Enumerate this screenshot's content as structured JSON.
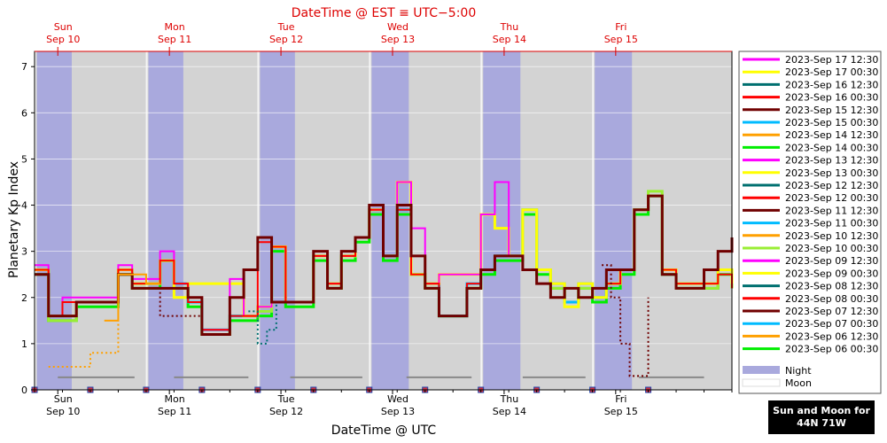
{
  "top_title": "DateTime @ EST ≡ UTC−5:00",
  "top_days": [
    {
      "day": "Sun",
      "date": "Sep 10"
    },
    {
      "day": "Mon",
      "date": "Sep 11"
    },
    {
      "day": "Tue",
      "date": "Sep 12"
    },
    {
      "day": "Wed",
      "date": "Sep 13"
    },
    {
      "day": "Thu",
      "date": "Sep 14"
    },
    {
      "day": "Fri",
      "date": "Sep 15"
    }
  ],
  "bottom_days": [
    {
      "day": "Sun",
      "date": "Sep 10"
    },
    {
      "day": "Mon",
      "date": "Sep 11"
    },
    {
      "day": "Tue",
      "date": "Sep 12"
    },
    {
      "day": "Wed",
      "date": "Sep 13"
    },
    {
      "day": "Thu",
      "date": "Sep 14"
    },
    {
      "day": "Fri",
      "date": "Sep 15"
    }
  ],
  "badge": {
    "line1": "Sun and Moon for",
    "line2": "44N 71W"
  },
  "colors": {
    "night": "#a9a9dd",
    "day": "#d3d3d3",
    "moon": "#888888",
    "top_title": "#dd0000"
  },
  "chart_data": {
    "type": "line",
    "xlabel": "DateTime @ UTC",
    "ylabel": "Planetary Kp Index",
    "xlim_hours": [
      0,
      150
    ],
    "x_unit": "hours from 2023-Sep 10 00:00 UTC",
    "ylim": [
      0,
      7.33
    ],
    "yticks": [
      0,
      1,
      2,
      3,
      4,
      5,
      6,
      7
    ],
    "legend_position": "right",
    "legend_extra": [
      "Night",
      "Moon"
    ],
    "night_intervals_hours": [
      [
        0.5,
        8
      ],
      [
        24.5,
        32
      ],
      [
        48.5,
        56
      ],
      [
        72.5,
        80.5
      ],
      [
        96.5,
        104.5
      ],
      [
        120.5,
        128.5
      ]
    ],
    "moon_intervals_hours": [
      [
        5,
        21.5
      ],
      [
        30,
        46
      ],
      [
        55,
        70.5
      ],
      [
        80,
        94
      ],
      [
        105,
        118.5
      ],
      [
        130,
        144
      ]
    ],
    "series": [
      {
        "name": "2023-Sep 17 12:30",
        "color": "#ff00ff"
      },
      {
        "name": "2023-Sep 17 00:30",
        "color": "#ffff00"
      },
      {
        "name": "2023-Sep 16 12:30",
        "color": "#007070"
      },
      {
        "name": "2023-Sep 16 00:30",
        "color": "#ff0000"
      },
      {
        "name": "2023-Sep 15 12:30",
        "color": "#700000"
      },
      {
        "name": "2023-Sep 15 00:30",
        "color": "#00bbff"
      },
      {
        "name": "2023-Sep 14 12:30",
        "color": "#ffa000"
      },
      {
        "name": "2023-Sep 14 00:30",
        "color": "#00ee00"
      },
      {
        "name": "2023-Sep 13 12:30",
        "color": "#ff00ff"
      },
      {
        "name": "2023-Sep 13 00:30",
        "color": "#ffff00"
      },
      {
        "name": "2023-Sep 12 12:30",
        "color": "#007070"
      },
      {
        "name": "2023-Sep 12 00:30",
        "color": "#ff0000"
      },
      {
        "name": "2023-Sep 11 12:30",
        "color": "#700000"
      },
      {
        "name": "2023-Sep 11 00:30",
        "color": "#00bbff"
      },
      {
        "name": "2023-Sep 10 12:30",
        "color": "#ffa000"
      },
      {
        "name": "2023-Sep 10 00:30",
        "color": "#99ee33"
      },
      {
        "name": "2023-Sep 09 12:30",
        "color": "#ff00ff"
      },
      {
        "name": "2023-Sep 09 00:30",
        "color": "#ffff00"
      },
      {
        "name": "2023-Sep 08 12:30",
        "color": "#007070"
      },
      {
        "name": "2023-Sep 08 00:30",
        "color": "#ff0000"
      },
      {
        "name": "2023-Sep 07 12:30",
        "color": "#700000"
      },
      {
        "name": "2023-Sep 07 00:30",
        "color": "#00bbff"
      },
      {
        "name": "2023-Sep 06 12:30",
        "color": "#ffa000"
      },
      {
        "name": "2023-Sep 06 00:30",
        "color": "#00ee00"
      }
    ],
    "plotted_traces": [
      {
        "color": "#00ee00",
        "width": 3,
        "x": [
          0,
          3,
          6,
          9,
          12,
          15,
          18,
          21,
          24,
          27,
          30,
          33,
          36,
          39,
          42,
          45,
          48,
          51,
          54,
          57,
          60,
          63,
          66,
          69,
          72,
          75,
          78,
          81,
          84,
          87,
          90,
          93,
          96,
          99,
          102,
          105,
          108,
          111,
          114,
          117,
          120,
          123,
          126,
          129,
          132,
          135,
          138,
          141,
          144,
          147,
          150
        ],
        "y": [
          2.5,
          1.5,
          1.5,
          1.8,
          1.8,
          1.8,
          2.5,
          2.2,
          2.2,
          2.8,
          2.2,
          1.8,
          1.2,
          1.2,
          1.5,
          1.5,
          1.6,
          3.0,
          1.8,
          1.8,
          2.8,
          2.2,
          2.8,
          3.2,
          3.8,
          2.8,
          3.8,
          2.5,
          2.2,
          1.6,
          1.6,
          2.2,
          2.5,
          2.8,
          2.8,
          3.8,
          2.5,
          2.2,
          1.9,
          2.2,
          1.9,
          2.2,
          2.5,
          3.8,
          4.2,
          2.5,
          2.2,
          2.2,
          2.2,
          2.5,
          2.2
        ]
      },
      {
        "color": "#99ee33",
        "width": 3,
        "x": [
          0,
          3,
          6,
          9,
          12,
          15,
          18,
          21,
          24,
          27,
          30,
          33,
          36,
          39,
          42,
          45,
          48,
          51,
          54,
          57,
          60,
          63,
          66,
          69,
          72,
          75,
          78,
          81,
          84,
          87,
          90,
          93,
          96,
          99,
          102,
          105,
          108,
          111,
          114,
          117,
          120,
          123,
          126,
          129,
          132,
          135,
          138,
          141,
          144,
          147,
          150
        ],
        "y": [
          2.6,
          1.5,
          1.5,
          1.9,
          1.9,
          1.9,
          2.6,
          2.3,
          2.3,
          2.8,
          2.2,
          1.9,
          1.2,
          1.2,
          1.6,
          1.6,
          1.7,
          3.1,
          1.9,
          1.9,
          2.9,
          2.2,
          2.9,
          3.3,
          3.9,
          2.9,
          3.9,
          2.5,
          2.2,
          1.6,
          1.6,
          2.2,
          2.6,
          2.9,
          2.9,
          3.9,
          2.6,
          2.2,
          1.9,
          2.2,
          2.0,
          2.3,
          2.6,
          3.9,
          4.3,
          2.6,
          2.2,
          2.2,
          2.2,
          2.6,
          2.2
        ]
      },
      {
        "color": "#00bbff",
        "width": 3,
        "x": [
          0,
          3,
          6,
          9,
          12,
          15,
          18,
          21,
          24,
          27,
          30,
          33,
          36,
          39,
          42,
          45,
          48,
          51,
          54,
          57,
          60,
          63,
          66,
          69,
          72,
          75,
          78,
          81,
          84,
          87,
          90,
          93,
          96,
          99,
          102,
          105,
          108,
          111,
          114,
          117,
          120,
          123,
          126,
          129,
          132,
          135,
          138,
          141,
          144,
          147,
          150
        ],
        "y": [
          2.6,
          1.6,
          1.6,
          1.9,
          1.9,
          1.9,
          2.6,
          2.3,
          2.3,
          2.8,
          2.3,
          1.9,
          1.3,
          1.3,
          1.6,
          1.6,
          1.8,
          3.1,
          1.9,
          1.9,
          2.9,
          2.3,
          2.9,
          3.3,
          3.9,
          2.9,
          3.9,
          2.5,
          2.3,
          1.6,
          1.6,
          2.3,
          2.6,
          2.9,
          2.9,
          3.9,
          2.6,
          2.3,
          1.9,
          2.3,
          2.0,
          2.3,
          2.6,
          3.9,
          4.2,
          2.6,
          2.3,
          2.3,
          2.3,
          2.6,
          2.3
        ]
      },
      {
        "color": "#ffff00",
        "width": 3,
        "x": [
          0,
          3,
          6,
          9,
          12,
          15,
          18,
          21,
          24,
          27,
          30,
          33,
          36,
          39,
          42,
          45,
          48,
          51,
          54,
          57,
          60,
          63,
          66,
          69,
          72,
          75,
          78,
          81,
          84,
          87,
          90,
          93,
          96,
          99,
          102,
          105,
          108,
          111,
          114,
          117,
          120,
          123,
          126,
          129,
          132,
          135,
          138,
          141,
          144,
          147,
          150
        ],
        "y": [
          2.6,
          1.6,
          1.6,
          1.9,
          1.9,
          1.9,
          2.6,
          2.3,
          2.3,
          2.8,
          2.0,
          2.3,
          2.3,
          2.3,
          2.3,
          1.6,
          1.8,
          3.1,
          1.9,
          1.9,
          2.9,
          2.3,
          2.9,
          3.3,
          3.9,
          2.9,
          4.5,
          2.5,
          2.3,
          2.5,
          2.5,
          2.5,
          3.8,
          3.5,
          2.9,
          3.9,
          2.6,
          2.3,
          1.8,
          2.3,
          2.0,
          2.3,
          2.6,
          3.9,
          4.2,
          2.6,
          2.3,
          2.3,
          2.3,
          2.6,
          2.3
        ]
      },
      {
        "color": "#ff00ff",
        "width": 2,
        "x": [
          0,
          3,
          6,
          9,
          12,
          15,
          18,
          21,
          24,
          27,
          30,
          33,
          36,
          39,
          42,
          45,
          48,
          51,
          54,
          57,
          60,
          63,
          66,
          69,
          72,
          75,
          78,
          81,
          84,
          87,
          90,
          93,
          96,
          99,
          102
        ],
        "y": [
          2.7,
          1.6,
          2.0,
          2.0,
          2.0,
          2.0,
          2.7,
          2.4,
          2.4,
          3.0,
          2.3,
          2.0,
          1.3,
          1.3,
          2.4,
          1.6,
          1.8,
          3.1,
          1.9,
          1.9,
          2.9,
          2.3,
          2.9,
          3.3,
          3.9,
          2.9,
          4.5,
          3.5,
          2.3,
          2.5,
          2.5,
          2.5,
          3.8,
          4.5,
          2.9
        ]
      },
      {
        "color": "#ff0000",
        "width": 2,
        "x": [
          0,
          3,
          6,
          9,
          12,
          15,
          18,
          21,
          24,
          27,
          30,
          33,
          36,
          39,
          42,
          45,
          48,
          51,
          54,
          57,
          60,
          63,
          66,
          69,
          72,
          75,
          78,
          81,
          84,
          87,
          90,
          93,
          96,
          99,
          102,
          105,
          108,
          111,
          114,
          117,
          120,
          123,
          126,
          129,
          132,
          135,
          138,
          141,
          144,
          147,
          150
        ],
        "y": [
          2.6,
          1.6,
          1.9,
          1.9,
          1.9,
          1.9,
          2.6,
          2.3,
          2.3,
          2.8,
          2.3,
          1.9,
          1.3,
          1.3,
          1.6,
          1.6,
          3.2,
          3.1,
          1.9,
          1.9,
          2.9,
          2.3,
          2.9,
          3.3,
          3.9,
          2.9,
          3.9,
          2.5,
          2.3,
          1.6,
          1.6,
          2.3,
          2.6,
          2.9,
          2.9,
          2.6,
          2.3,
          2.0,
          2.2,
          2.0,
          2.2,
          2.3,
          2.6,
          3.9,
          4.2,
          2.6,
          2.3,
          2.3,
          2.3,
          2.5,
          2.2
        ]
      },
      {
        "color": "#700000",
        "width": 3,
        "x": [
          0,
          3,
          6,
          9,
          12,
          15,
          18,
          21,
          24,
          27,
          30,
          33,
          36,
          39,
          42,
          45,
          48,
          51,
          54,
          57,
          60,
          63,
          66,
          69,
          72,
          75,
          78,
          81,
          84,
          87,
          90,
          93,
          96,
          99,
          102,
          105,
          108,
          111,
          114,
          117,
          120,
          123,
          126,
          129,
          132,
          135,
          138,
          141,
          144,
          147,
          150
        ],
        "y": [
          2.5,
          1.6,
          1.6,
          1.9,
          1.9,
          1.9,
          2.5,
          2.2,
          2.2,
          2.2,
          2.2,
          2.0,
          1.2,
          1.2,
          2.0,
          2.6,
          3.3,
          1.9,
          1.9,
          1.9,
          3.0,
          2.2,
          3.0,
          3.3,
          4.0,
          2.9,
          4.0,
          2.9,
          2.2,
          1.6,
          1.6,
          2.2,
          2.6,
          2.9,
          2.9,
          2.6,
          2.3,
          2.0,
          2.2,
          2.0,
          2.2,
          2.6,
          2.6,
          3.9,
          4.2,
          2.5,
          2.2,
          2.2,
          2.6,
          3.0,
          3.3
        ]
      },
      {
        "color": "#ffa000",
        "width": 2,
        "dashed": true,
        "x": [
          3,
          6,
          9,
          12,
          15,
          18
        ],
        "y": [
          0.5,
          0.5,
          0.5,
          0.8,
          0.8,
          1.5
        ]
      },
      {
        "color": "#ffa000",
        "width": 2,
        "x": [
          15,
          18,
          21,
          24,
          27
        ],
        "y": [
          1.5,
          2.5,
          2.5,
          2.3,
          2.3
        ]
      },
      {
        "color": "#007070",
        "width": 2,
        "dashed": true,
        "x": [
          46,
          48,
          50,
          52
        ],
        "y": [
          1.7,
          1.0,
          1.3,
          1.9
        ]
      },
      {
        "color": "#700000",
        "width": 2,
        "dashed": true,
        "x": [
          24,
          27,
          30,
          33,
          36
        ],
        "y": [
          2.2,
          1.6,
          1.6,
          1.6,
          1.4
        ]
      },
      {
        "color": "#700000",
        "width": 2,
        "dashed": true,
        "x": [
          122,
          124,
          126,
          128,
          130,
          132
        ],
        "y": [
          2.7,
          2.0,
          1.0,
          0.3,
          0.3,
          2.0
        ]
      }
    ]
  }
}
